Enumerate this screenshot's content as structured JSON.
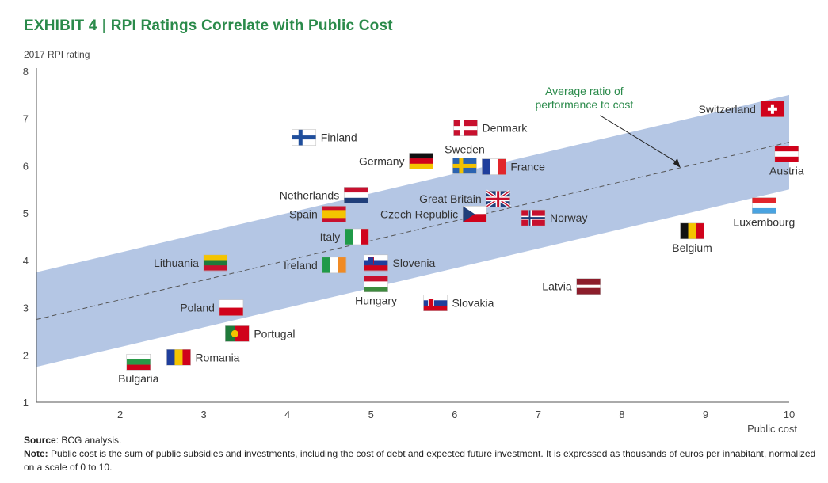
{
  "title": {
    "exhibit": "EXHIBIT 4",
    "separator": "|",
    "text": "RPI Ratings Correlate with Public Cost"
  },
  "footer": {
    "source_label": "Source",
    "source_text": ": BCG analysis.",
    "note_label": "Note:",
    "note_text": " Public cost is the sum of public subsidies and investments, including the cost of debt and expected future investment. It is expressed as thousands of euros per inhabitant, normalized on a scale of 0 to 10."
  },
  "chart_data": {
    "type": "scatter",
    "title": "RPI Ratings Correlate with Public Cost",
    "xlabel": "Public cost",
    "ylabel": "2017 RPI rating",
    "xlim": [
      1,
      10
    ],
    "ylim": [
      1,
      8
    ],
    "x_ticks": [
      2,
      3,
      4,
      5,
      6,
      7,
      8,
      9,
      10
    ],
    "y_ticks": [
      1,
      2,
      3,
      4,
      5,
      6,
      7,
      8
    ],
    "band": {
      "lower": [
        [
          1,
          1.75
        ],
        [
          10,
          5.5
        ]
      ],
      "upper": [
        [
          1,
          3.75
        ],
        [
          10,
          7.5
        ]
      ],
      "color": "#b4c6e4"
    },
    "trend_line": {
      "points": [
        [
          1,
          2.75
        ],
        [
          10,
          6.5
        ]
      ],
      "style": "dashed"
    },
    "annotation": {
      "text_lines": [
        "Average ratio of",
        "performance to cost"
      ],
      "x": 7.55,
      "y": 7.5
    },
    "points": [
      {
        "name": "Finland",
        "x": 4.2,
        "y": 6.6,
        "label": "right",
        "flag": "finland"
      },
      {
        "name": "Denmark",
        "x": 6.13,
        "y": 6.8,
        "label": "right",
        "flag": "denmark"
      },
      {
        "name": "Germany",
        "x": 5.6,
        "y": 6.1,
        "label": "left",
        "flag": "germany"
      },
      {
        "name": "Sweden",
        "x": 6.12,
        "y": 6.0,
        "label": "above",
        "flag": "sweden"
      },
      {
        "name": "France",
        "x": 6.47,
        "y": 5.98,
        "label": "right",
        "flag": "france"
      },
      {
        "name": "Netherlands",
        "x": 4.82,
        "y": 5.38,
        "label": "left",
        "flag": "netherlands"
      },
      {
        "name": "Great Britain",
        "x": 6.52,
        "y": 5.3,
        "label": "left",
        "flag": "uk"
      },
      {
        "name": "Spain",
        "x": 4.56,
        "y": 4.98,
        "label": "left",
        "flag": "spain"
      },
      {
        "name": "Czech Republic",
        "x": 6.24,
        "y": 4.98,
        "label": "left",
        "flag": "czech"
      },
      {
        "name": "Norway",
        "x": 6.94,
        "y": 4.9,
        "label": "right",
        "flag": "norway"
      },
      {
        "name": "Italy",
        "x": 4.83,
        "y": 4.5,
        "label": "left",
        "flag": "italy"
      },
      {
        "name": "Lithuania",
        "x": 3.14,
        "y": 3.95,
        "label": "left",
        "flag": "lithuania"
      },
      {
        "name": "Ireland",
        "x": 4.56,
        "y": 3.9,
        "label": "left",
        "flag": "ireland"
      },
      {
        "name": "Slovenia",
        "x": 5.06,
        "y": 3.95,
        "label": "right",
        "flag": "slovenia"
      },
      {
        "name": "Hungary",
        "x": 5.06,
        "y": 3.5,
        "label": "below",
        "flag": "hungary"
      },
      {
        "name": "Latvia",
        "x": 7.6,
        "y": 3.45,
        "label": "left",
        "flag": "latvia"
      },
      {
        "name": "Poland",
        "x": 3.33,
        "y": 3.0,
        "label": "left",
        "flag": "poland"
      },
      {
        "name": "Slovakia",
        "x": 5.77,
        "y": 3.1,
        "label": "right",
        "flag": "slovakia"
      },
      {
        "name": "Portugal",
        "x": 3.4,
        "y": 2.45,
        "label": "right",
        "flag": "portugal"
      },
      {
        "name": "Romania",
        "x": 2.7,
        "y": 1.95,
        "label": "right",
        "flag": "romania"
      },
      {
        "name": "Bulgaria",
        "x": 2.22,
        "y": 1.85,
        "label": "below",
        "flag": "bulgaria"
      },
      {
        "name": "Switzerland",
        "x": 9.8,
        "y": 7.2,
        "label": "left",
        "flag": "switzerland"
      },
      {
        "name": "Austria",
        "x": 9.97,
        "y": 6.25,
        "label": "below",
        "flag": "austria"
      },
      {
        "name": "Luxembourg",
        "x": 9.7,
        "y": 5.16,
        "label": "below",
        "flag": "luxembourg"
      },
      {
        "name": "Belgium",
        "x": 8.84,
        "y": 4.62,
        "label": "below",
        "flag": "belgium"
      }
    ]
  }
}
